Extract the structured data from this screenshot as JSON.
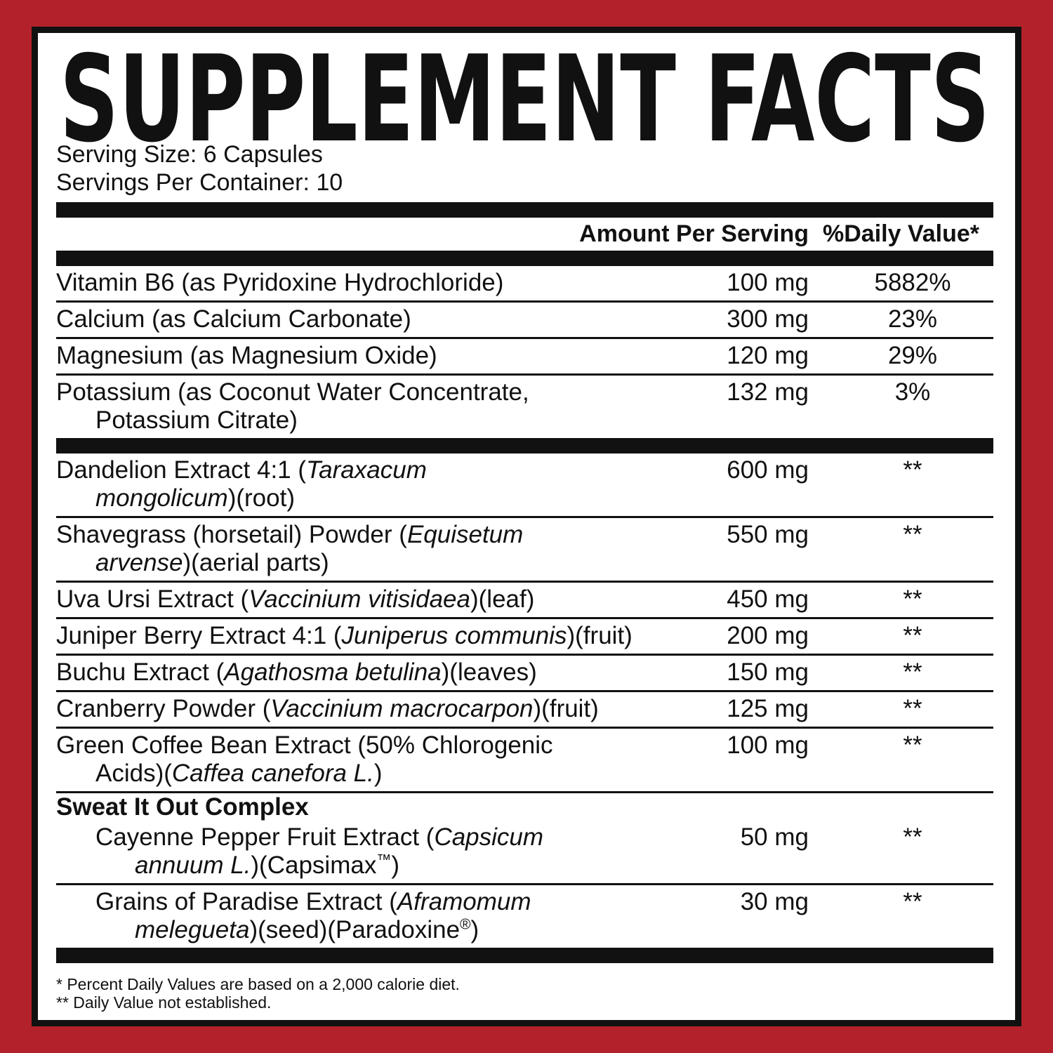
{
  "header": {
    "title": "SUPPLEMENT FACTS",
    "serving_size": "Serving Size: 6 Capsules",
    "servings_per_container": "Servings Per Container: 10"
  },
  "table": {
    "columns": [
      "Amount Per Serving",
      "%Daily Value*"
    ],
    "sections": [
      {
        "rows": [
          {
            "name": [
              [
                {
                  "text": "Vitamin B6 (as Pyridoxine Hydrochloride)",
                  "style": "normal"
                }
              ]
            ],
            "amount": "100 mg",
            "daily_value": "5882%"
          },
          {
            "name": [
              [
                {
                  "text": "Calcium (as Calcium Carbonate)",
                  "style": "normal"
                }
              ]
            ],
            "amount": "300 mg",
            "daily_value": "23%"
          },
          {
            "name": [
              [
                {
                  "text": "Magnesium (as Magnesium Oxide)",
                  "style": "normal"
                }
              ]
            ],
            "amount": "120 mg",
            "daily_value": "29%"
          },
          {
            "name": [
              [
                {
                  "text": "Potassium (as Coconut Water Concentrate,",
                  "style": "normal"
                }
              ],
              [
                {
                  "text": "Potassium Citrate)",
                  "style": "normal"
                }
              ]
            ],
            "amount": "132 mg",
            "daily_value": "3%"
          }
        ]
      },
      {
        "rows": [
          {
            "name": [
              [
                {
                  "text": "Dandelion Extract 4:1 (",
                  "style": "normal"
                },
                {
                  "text": "Taraxacum",
                  "style": "italic"
                }
              ],
              [
                {
                  "text": "mongolicum",
                  "style": "italic"
                },
                {
                  "text": ")(root)",
                  "style": "normal"
                }
              ]
            ],
            "amount": "600 mg",
            "daily_value": "**"
          },
          {
            "name": [
              [
                {
                  "text": "Shavegrass (horsetail) Powder (",
                  "style": "normal"
                },
                {
                  "text": "Equisetum",
                  "style": "italic"
                }
              ],
              [
                {
                  "text": "arvense",
                  "style": "italic"
                },
                {
                  "text": ")(aerial parts)",
                  "style": "normal"
                }
              ]
            ],
            "amount": "550 mg",
            "daily_value": "**"
          },
          {
            "name": [
              [
                {
                  "text": "Uva Ursi Extract (",
                  "style": "normal"
                },
                {
                  "text": "Vaccinium vitisidaea",
                  "style": "italic"
                },
                {
                  "text": ")(leaf)",
                  "style": "normal"
                }
              ]
            ],
            "amount": "450 mg",
            "daily_value": "**"
          },
          {
            "name": [
              [
                {
                  "text": "Juniper Berry Extract 4:1 (",
                  "style": "normal"
                },
                {
                  "text": "Juniperus communis",
                  "style": "italic"
                },
                {
                  "text": ")(fruit)",
                  "style": "normal"
                }
              ]
            ],
            "amount": "200 mg",
            "daily_value": "**"
          },
          {
            "name": [
              [
                {
                  "text": "Buchu Extract (",
                  "style": "normal"
                },
                {
                  "text": "Agathosma betulina",
                  "style": "italic"
                },
                {
                  "text": ")(leaves)",
                  "style": "normal"
                }
              ]
            ],
            "amount": "150 mg",
            "daily_value": "**"
          },
          {
            "name": [
              [
                {
                  "text": "Cranberry Powder (",
                  "style": "normal"
                },
                {
                  "text": "Vaccinium macrocarpon",
                  "style": "italic"
                },
                {
                  "text": ")(fruit)",
                  "style": "normal"
                }
              ]
            ],
            "amount": "125 mg",
            "daily_value": "**"
          },
          {
            "name": [
              [
                {
                  "text": "Green Coffee Bean Extract (50% Chlorogenic",
                  "style": "normal"
                }
              ],
              [
                {
                  "text": "Acids)(",
                  "style": "normal"
                },
                {
                  "text": "Caffea canefora L.",
                  "style": "italic"
                },
                {
                  "text": ")",
                  "style": "normal"
                }
              ]
            ],
            "amount": "100 mg",
            "daily_value": "**"
          }
        ]
      },
      {
        "heading": "Sweat It Out Complex",
        "rows": [
          {
            "name": [
              [
                {
                  "text": "Cayenne Pepper Fruit Extract (",
                  "style": "normal"
                },
                {
                  "text": "Capsicum",
                  "style": "italic"
                }
              ],
              [
                {
                  "text": "annuum L.",
                  "style": "italic"
                },
                {
                  "text": ")(Capsimax",
                  "style": "normal"
                },
                {
                  "text": "™",
                  "style": "sup"
                },
                {
                  "text": ")",
                  "style": "normal"
                }
              ]
            ],
            "amount": "50 mg",
            "daily_value": "**"
          },
          {
            "name": [
              [
                {
                  "text": "Grains of Paradise Extract (",
                  "style": "normal"
                },
                {
                  "text": "Aframomum",
                  "style": "italic"
                }
              ],
              [
                {
                  "text": "melegueta",
                  "style": "italic"
                },
                {
                  "text": ")(seed)(Paradoxine",
                  "style": "normal"
                },
                {
                  "text": "®",
                  "style": "sup"
                },
                {
                  "text": ")",
                  "style": "normal"
                }
              ]
            ],
            "amount": "30 mg",
            "daily_value": "**"
          }
        ]
      }
    ]
  },
  "footnotes": [
    "* Percent Daily Values are based on a 2,000 calorie diet.",
    "** Daily Value not established."
  ]
}
